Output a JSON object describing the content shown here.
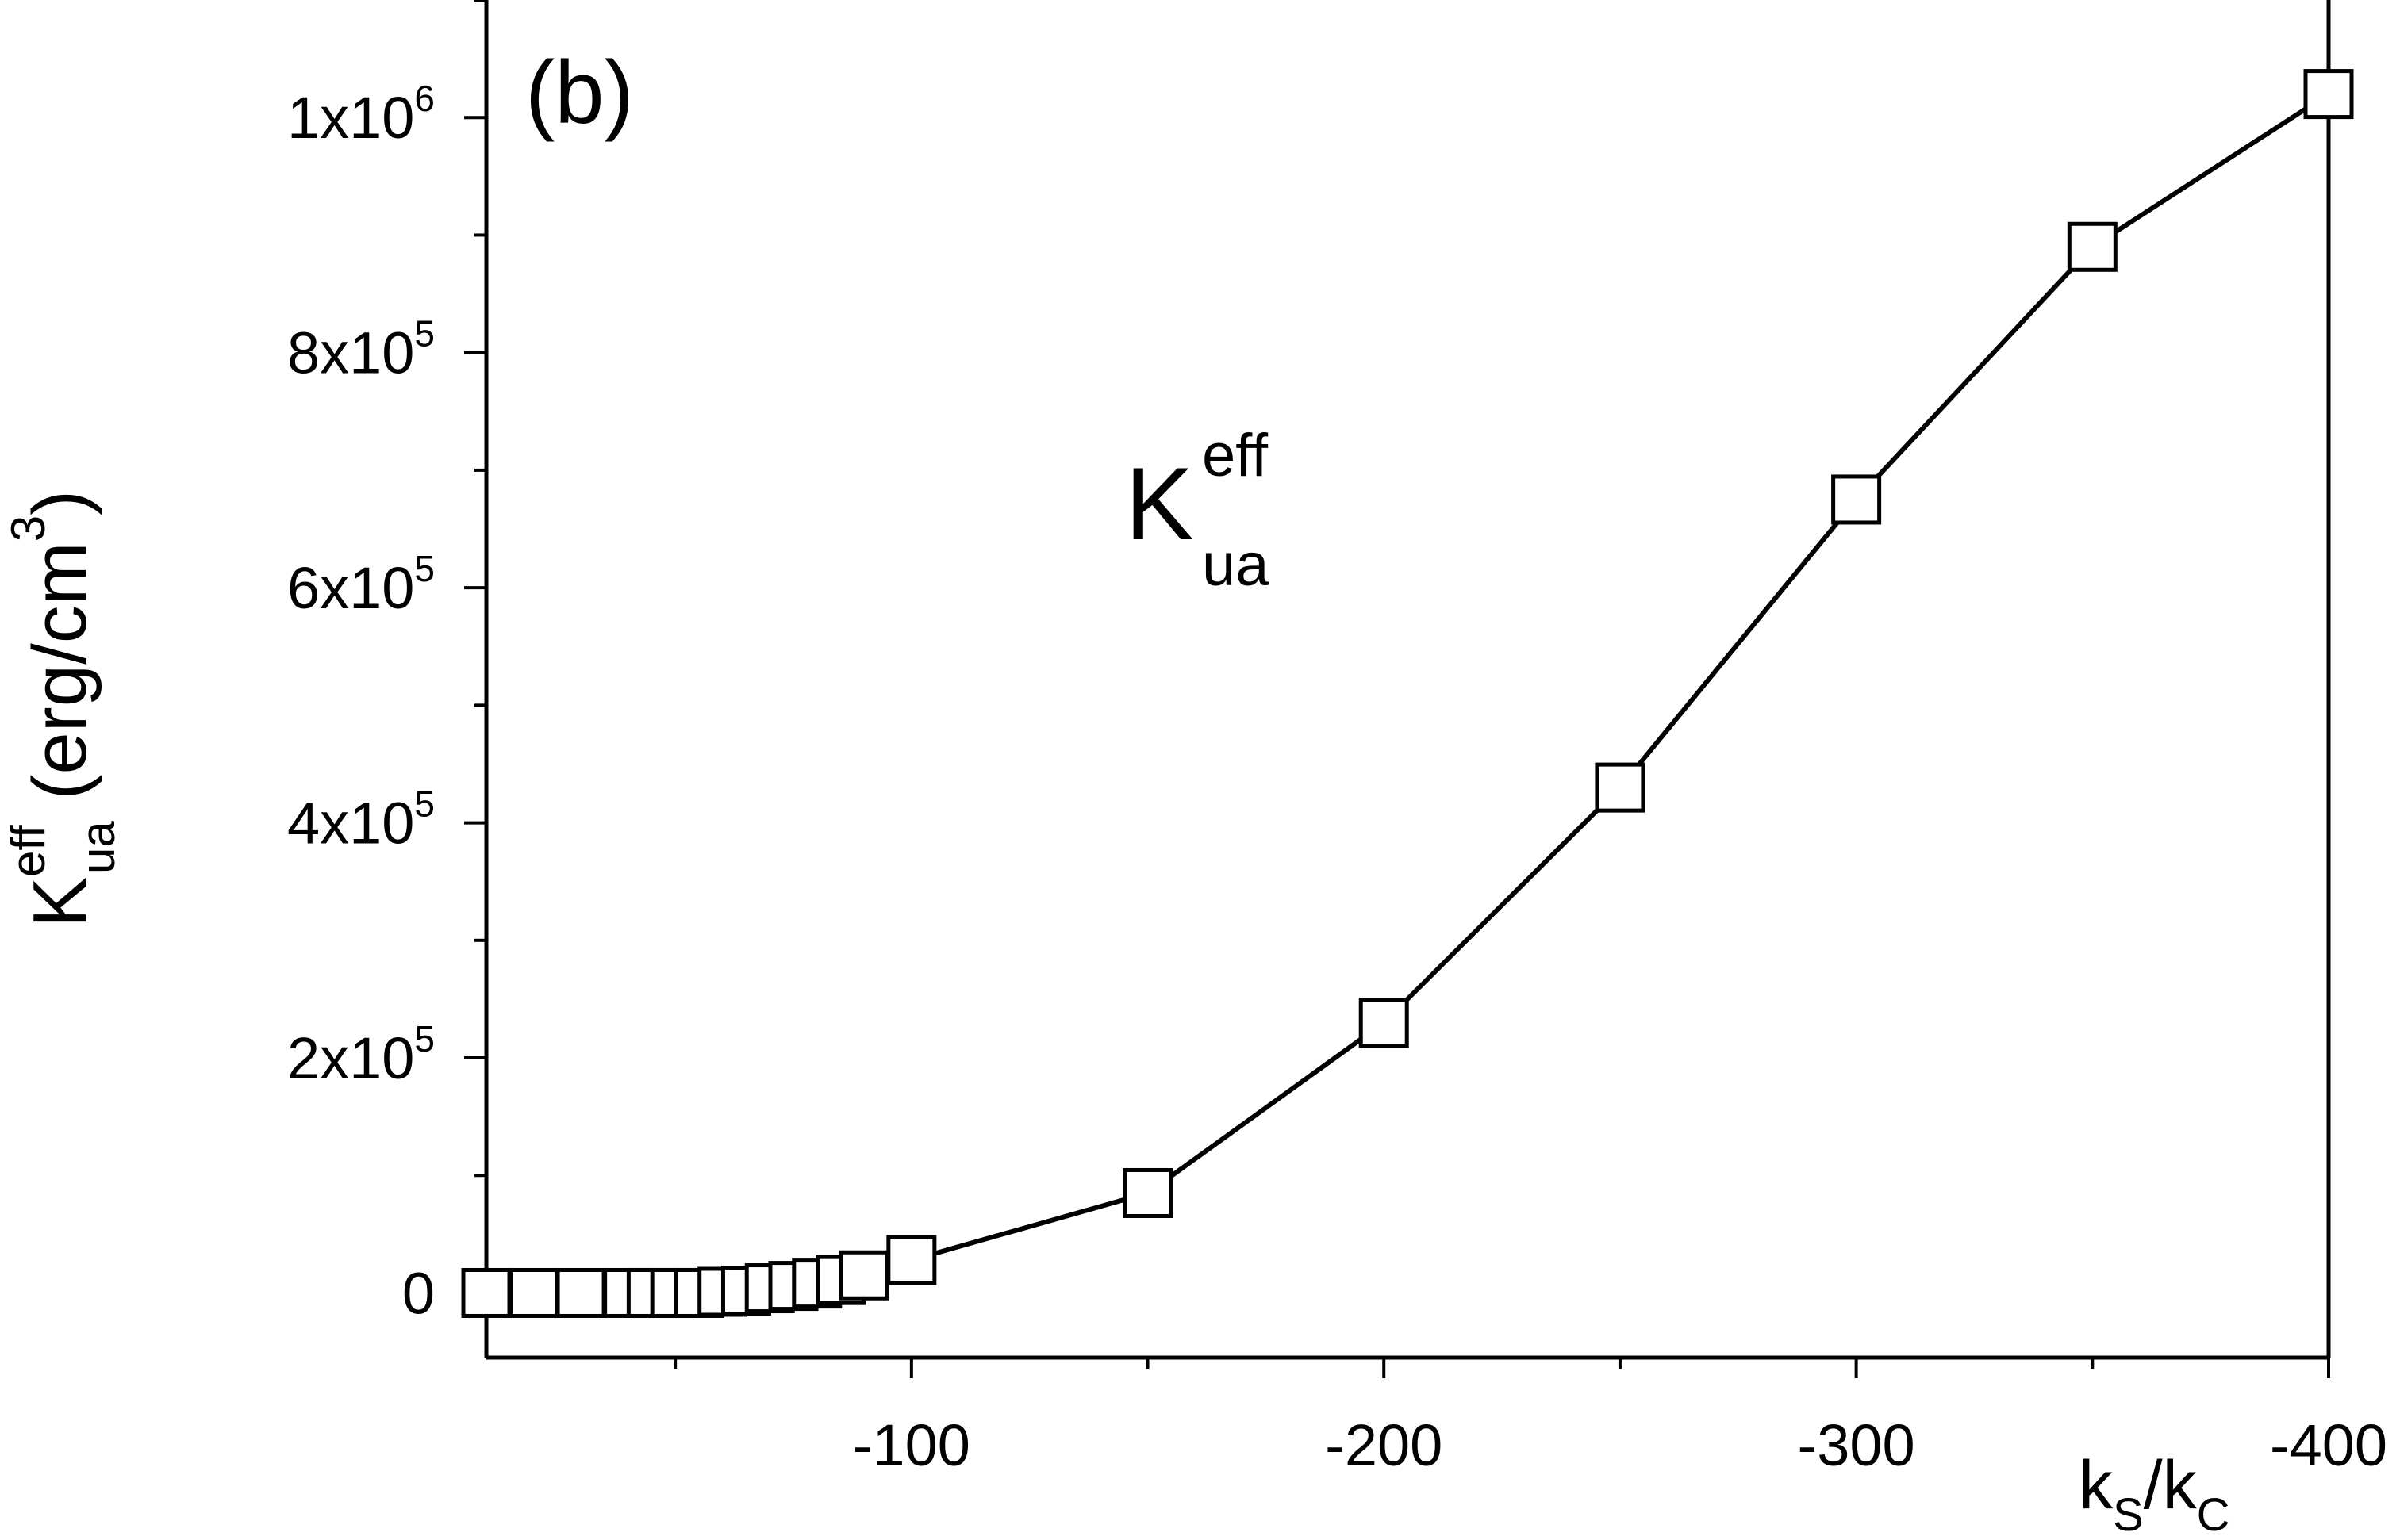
{
  "chart_data": {
    "type": "line",
    "panel_label": "(b)",
    "annotation": {
      "main": "K",
      "sup": "eff",
      "sub": "ua"
    },
    "xlabel": {
      "k1": "k",
      "s1": "S",
      "slash": "/",
      "k2": "k",
      "s2": "C"
    },
    "ylabel": {
      "main": "K",
      "sup": "eff",
      "sub": "ua",
      "unit": " (erg/cm",
      "unit_sup": "3",
      "unit_close": ")"
    },
    "xlim": [
      -10,
      -400
    ],
    "ylim": [
      -55000,
      1100000
    ],
    "x_ticks": [
      {
        "value": -100,
        "label": "-100"
      },
      {
        "value": -200,
        "label": "-200"
      },
      {
        "value": -300,
        "label": "-300"
      },
      {
        "value": -400,
        "label": "-400"
      }
    ],
    "x_minor_ticks": [
      -50,
      -150,
      -250,
      -350
    ],
    "y_ticks": [
      {
        "value": 0,
        "mant": "0",
        "exp": ""
      },
      {
        "value": 200000,
        "mant": "2x10",
        "exp": "5"
      },
      {
        "value": 400000,
        "mant": "4x10",
        "exp": "5"
      },
      {
        "value": 600000,
        "mant": "6x10",
        "exp": "5"
      },
      {
        "value": 800000,
        "mant": "8x10",
        "exp": "5"
      },
      {
        "value": 1000000,
        "mant": "1x10",
        "exp": "6"
      }
    ],
    "y_minor_ticks": [
      100000,
      300000,
      500000,
      700000,
      900000,
      1100000
    ],
    "grid": false,
    "series": [
      {
        "marker": "open-square",
        "x": [
          -10,
          -20,
          -30,
          -40,
          -45,
          -50,
          -55,
          -60,
          -65,
          -70,
          -75,
          -80,
          -85,
          -90,
          -100,
          -150,
          -200,
          -250,
          -300,
          -350,
          -400
        ],
        "y": [
          0,
          0,
          0,
          0,
          0,
          0,
          0,
          1000,
          2000,
          4000,
          6000,
          8000,
          11000,
          15000,
          28000,
          85000,
          230000,
          430000,
          675000,
          890000,
          1020000
        ]
      }
    ]
  }
}
